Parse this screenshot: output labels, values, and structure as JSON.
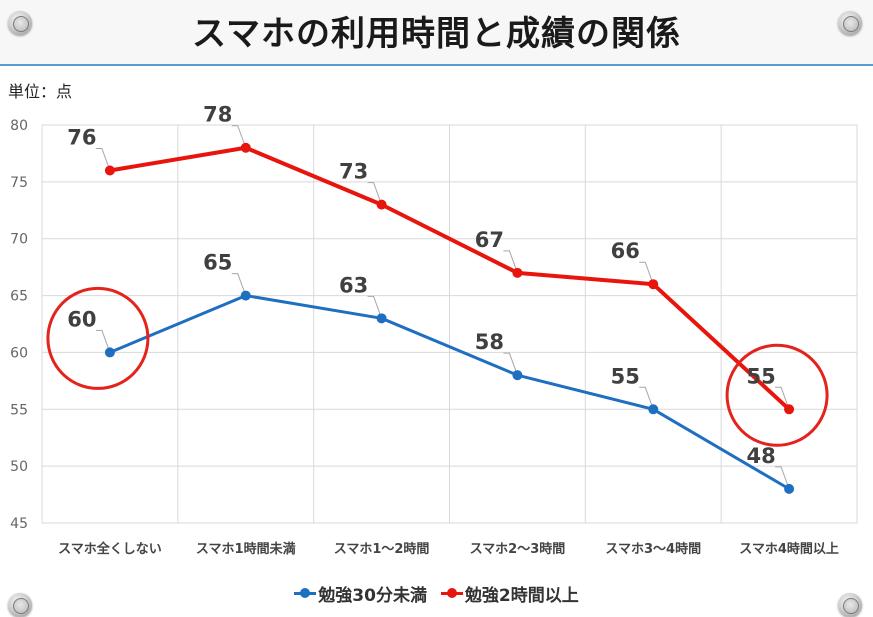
{
  "header": {
    "title": "スマホの利用時間と成績の関係"
  },
  "unit_label": "単位：点",
  "chart_data": {
    "type": "line",
    "categories": [
      "スマホ全くしない",
      "スマホ1時間未満",
      "スマホ1～2時間",
      "スマホ2～3時間",
      "スマホ3～4時間",
      "スマホ4時間以上"
    ],
    "series": [
      {
        "name": "勉強30分未満",
        "values": [
          60,
          65,
          63,
          58,
          55,
          48
        ],
        "color": "#1f6fc1"
      },
      {
        "name": "勉強2時間以上",
        "values": [
          76,
          78,
          73,
          67,
          66,
          55
        ],
        "color": "#e8150e"
      }
    ],
    "ylim": [
      45,
      80
    ],
    "yticks": [
      45,
      50,
      55,
      60,
      65,
      70,
      75,
      80
    ],
    "grid": true,
    "legend": "bottom",
    "highlight_circles": [
      {
        "category_index": 0,
        "value": 60,
        "color": "#e3231c"
      },
      {
        "category_index": 5,
        "value": 55,
        "color": "#e3231c"
      }
    ]
  }
}
